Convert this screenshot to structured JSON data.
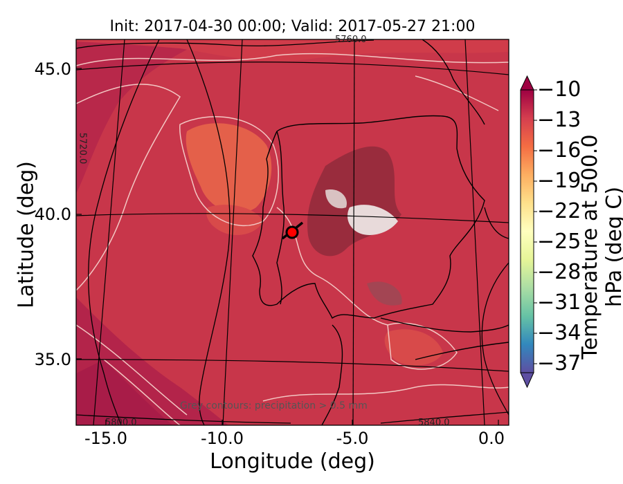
{
  "title": "Init: 2017-04-30 00:00; Valid: 2017-05-27 21:00",
  "xlabel": "Longitude (deg)",
  "ylabel": "Latitude (deg)",
  "colorbar_label": "Temperature at 500.0 hPa (deg C)",
  "x_ticks": [
    "-15.0",
    "-10.0",
    "-5.0",
    "0.0"
  ],
  "y_ticks": [
    "45.0",
    "40.0",
    "35.0"
  ],
  "colorbar_ticks": [
    "−10",
    "−13",
    "−16",
    "−19",
    "−22",
    "−25",
    "−28",
    "−31",
    "−34",
    "−37"
  ],
  "precip_note": "Grey contours: precipitation > 0.5 mm",
  "height_contour_labels": [
    "5760.0",
    "5720.0",
    "5800.0",
    "5840.0"
  ],
  "colors": {
    "warm_field": "#c8364a",
    "dark_field": "#a81c48",
    "orange_patch": "#e4604a",
    "contour_white": "#f3c7c3",
    "marker": "#ff0000"
  },
  "chart_data": {
    "type": "heatmap",
    "xlim": [
      -16.0,
      0.3
    ],
    "ylim": [
      32.5,
      46.0
    ],
    "colorbar_range": [
      -38,
      -10
    ],
    "marker": {
      "lon": -7.6,
      "lat": 39.3
    }
  }
}
